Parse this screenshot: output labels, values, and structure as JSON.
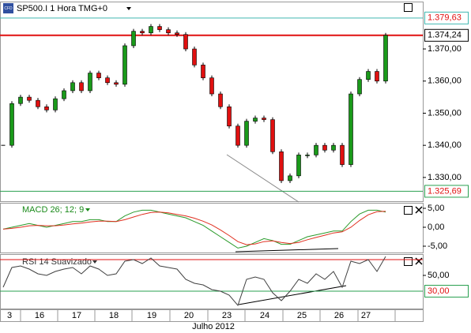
{
  "chart_data": [
    {
      "type": "candlestick",
      "title": "SP500.I 1 Hora TMG+0",
      "icon": "CFD",
      "values": [
        1340,
        1353,
        1355,
        1354,
        1352,
        1351,
        1354.5,
        1357,
        1359.5,
        1357,
        1362.5,
        1361,
        1359.5,
        1359,
        1371,
        1375.5,
        1375,
        1377,
        1376,
        1375,
        1374.5,
        1370,
        1365,
        1361,
        1356,
        1352,
        1346,
        1340,
        1347.5,
        1348.5,
        1348,
        1338,
        1329,
        1330.5,
        1337,
        1337,
        1340,
        1338.5,
        1340,
        1334,
        1356,
        1360.5,
        1363,
        1360,
        1374.24
      ],
      "up_color": "#1a9a1a",
      "down_color": "#e01010",
      "ylim": [
        1322.6,
        1384.5
      ],
      "yticks": [
        {
          "value": 1370,
          "label": "1.370,00"
        },
        {
          "value": 1360,
          "label": "1.360,00"
        },
        {
          "value": 1350,
          "label": "1.350,00"
        },
        {
          "value": 1340,
          "label": "1.340,00"
        },
        {
          "value": 1330,
          "label": "1.330,00"
        }
      ],
      "price_lines": [
        {
          "value": 1379.63,
          "label": "1.379,63",
          "color": "#40b8b0",
          "text_color": "#e01010"
        },
        {
          "value": 1374.24,
          "label": "1.374,24",
          "color": "#e01010",
          "text_color": "#000000"
        },
        {
          "value": 1325.69,
          "label": "1.325,69",
          "color": "#2aa050",
          "text_color": "#e01010"
        }
      ]
    },
    {
      "type": "line",
      "title": "MACD 26; 12; 9",
      "title_color": "#1a8a1a",
      "series": [
        {
          "color": "#2a9a2a",
          "values": [
            -0.5,
            0,
            0.5,
            1,
            0.5,
            0,
            0.5,
            1,
            1.5,
            1.5,
            2,
            2,
            1.5,
            1.5,
            3,
            4,
            4.5,
            4.5,
            4,
            3.5,
            3,
            2.5,
            1.5,
            0.5,
            -1,
            -2.5,
            -4,
            -5.5,
            -5,
            -4,
            -3,
            -3.5,
            -4.5,
            -4.5,
            -3.5,
            -2.5,
            -2,
            -1.5,
            -1,
            -1,
            1.5,
            3.5,
            4.5,
            4.5,
            4
          ]
        },
        {
          "color": "#e03020",
          "values": [
            -0.5,
            -0.3,
            0,
            0.4,
            0.5,
            0.4,
            0.4,
            0.6,
            0.9,
            1.1,
            1.4,
            1.6,
            1.6,
            1.5,
            2,
            2.7,
            3.4,
            3.9,
            4,
            3.8,
            3.4,
            3,
            2.4,
            1.6,
            0.6,
            -0.7,
            -2.2,
            -3.8,
            -4.6,
            -4.4,
            -3.8,
            -3.6,
            -4,
            -4.3,
            -4,
            -3.3,
            -2.7,
            -2.1,
            -1.5,
            -1.2,
            0,
            1.8,
            3.3,
            4.1,
            4.2
          ]
        }
      ],
      "ylim": [
        -6.67,
        6.25
      ],
      "yticks": [
        {
          "value": 5,
          "label": "5,00"
        },
        {
          "value": 0,
          "label": "0,00"
        },
        {
          "value": -5,
          "label": "-5,00"
        }
      ]
    },
    {
      "type": "line",
      "title": "RSI 14 Suavizado",
      "title_color": "#333333",
      "series": [
        {
          "color": "#404040",
          "values": [
            35,
            60,
            62,
            58,
            52,
            50,
            55,
            58,
            60,
            52,
            62,
            58,
            50,
            52,
            68,
            70,
            65,
            72,
            62,
            60,
            58,
            45,
            40,
            38,
            32,
            30,
            25,
            12,
            45,
            48,
            45,
            28,
            18,
            30,
            45,
            40,
            52,
            45,
            55,
            35,
            68,
            65,
            70,
            55,
            74
          ]
        }
      ],
      "ylim": [
        8,
        76
      ],
      "yticks": [
        {
          "value": 50,
          "label": "50,00"
        }
      ],
      "price_lines": [
        {
          "value": 70,
          "color": "#e01010"
        },
        {
          "value": 30,
          "label": "30,00",
          "color": "#2aa050",
          "text_color": "#e01010"
        }
      ]
    }
  ],
  "xaxis": {
    "labels": [
      "3",
      "16",
      "17",
      "18",
      "19",
      "20",
      "23",
      "24",
      "25",
      "26",
      "27"
    ],
    "month": "Julho 2012"
  }
}
